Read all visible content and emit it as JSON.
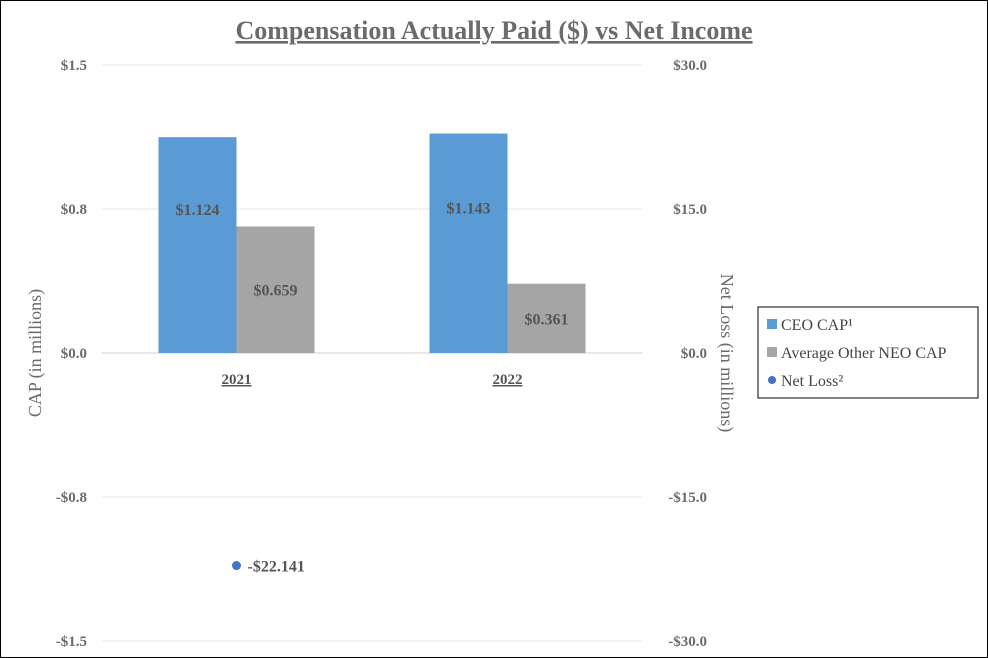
{
  "chart_data": {
    "type": "bar",
    "title": "Compensation Actually Paid ($) vs Net Income",
    "ylabel": "CAP (in millions)",
    "y2label": "Net Loss (in millions)",
    "categories": [
      "2021",
      "2022"
    ],
    "ylim": [
      -1.5,
      1.5
    ],
    "y2lim": [
      -30,
      30
    ],
    "yticks": [
      1.5,
      0.75,
      0,
      -0.75,
      -1.5
    ],
    "ytick_labels": [
      "$1.5",
      "$0.8",
      "$0.0",
      "-$0.8",
      "-$1.5"
    ],
    "y2ticks": [
      30,
      15,
      0,
      -15,
      -30
    ],
    "y2tick_labels": [
      "$30.0",
      "$15.0",
      "$0.0",
      "-$15.0",
      "-$30.0"
    ],
    "grid": true,
    "legend_position": "right",
    "series": [
      {
        "name": "CEO CAP¹",
        "type": "bar",
        "axis": "left",
        "color": "#5b9bd5",
        "values": [
          1.124,
          1.143
        ],
        "labels": [
          "$1.124",
          "$1.143"
        ]
      },
      {
        "name": "Average Other NEO CAP",
        "type": "bar",
        "axis": "left",
        "color": "#a5a5a5",
        "values": [
          0.659,
          0.361
        ],
        "labels": [
          "$0.659",
          "$0.361"
        ]
      },
      {
        "name": "Net Loss²",
        "type": "scatter",
        "axis": "right",
        "color": "#4472c4",
        "values": [
          -22.141,
          null
        ],
        "labels": [
          "-$22.141",
          ""
        ]
      }
    ]
  }
}
